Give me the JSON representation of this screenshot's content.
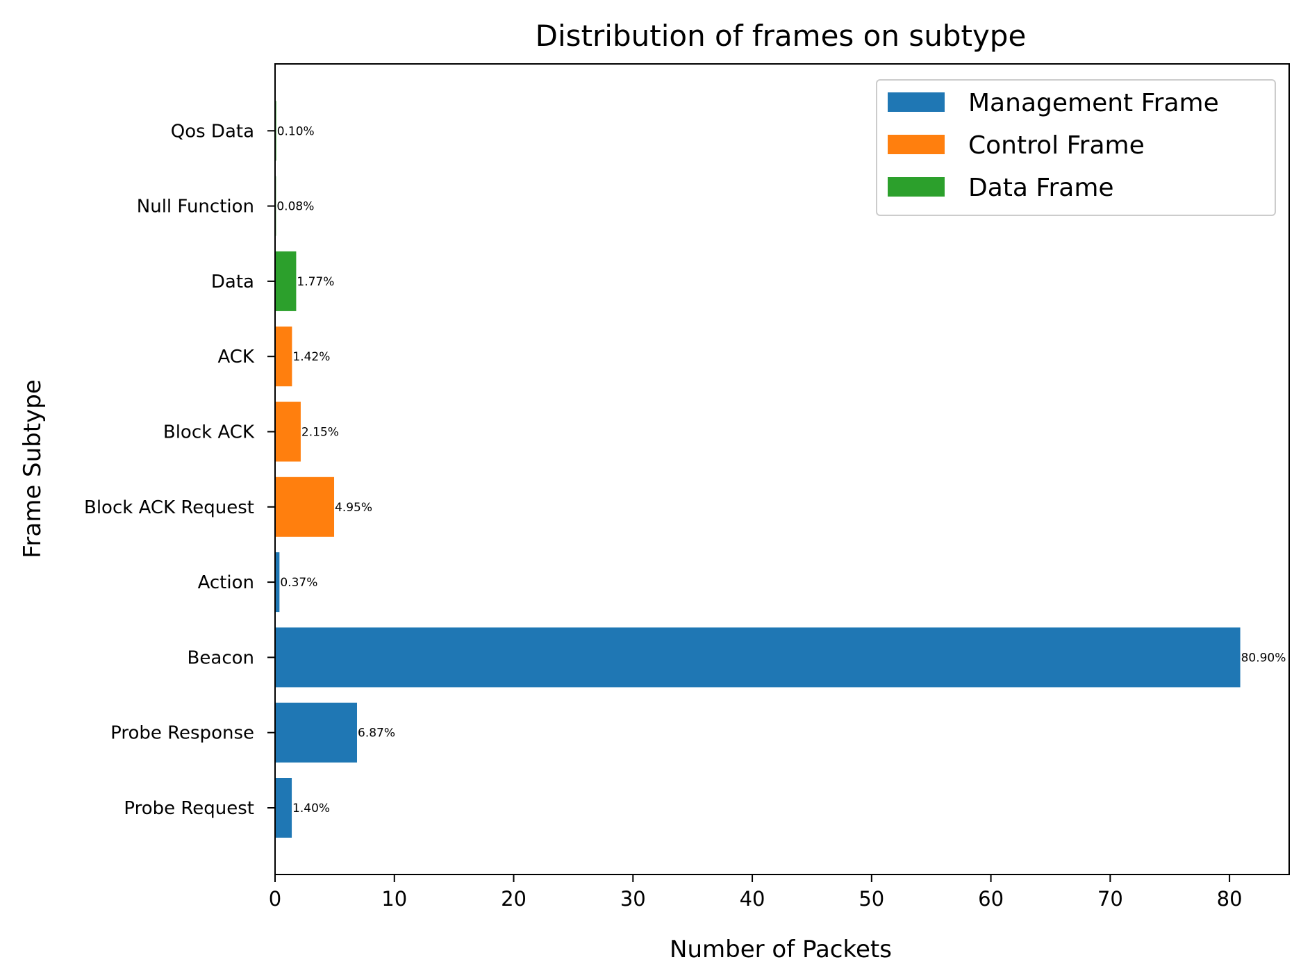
{
  "chart_data": {
    "type": "bar",
    "orientation": "horizontal",
    "title": "Distribution of frames on subtype",
    "xlabel": "Number of Packets",
    "ylabel": "Frame Subtype",
    "xlim": [
      0,
      85
    ],
    "xticks": [
      "0",
      "10",
      "20",
      "30",
      "40",
      "50",
      "60",
      "70",
      "80"
    ],
    "legend_position": "top-right",
    "grid": false,
    "groups": [
      {
        "name": "Management Frame",
        "color": "#1f77b4"
      },
      {
        "name": "Control Frame",
        "color": "#ff7f0e"
      },
      {
        "name": "Data Frame",
        "color": "#2ca02c"
      }
    ],
    "categories": [
      "Probe Request",
      "Probe Response",
      "Beacon",
      "Action",
      "Block ACK Request",
      "Block ACK",
      "ACK",
      "Data",
      "Null Function",
      "Qos Data"
    ],
    "values": [
      1.4,
      6.87,
      80.9,
      0.37,
      4.95,
      2.15,
      1.42,
      1.77,
      0.08,
      0.1
    ],
    "labels": [
      "1.40%",
      "6.87%",
      "80.90%",
      "0.37%",
      "4.95%",
      "2.15%",
      "1.42%",
      "1.77%",
      "0.08%",
      "0.10%"
    ],
    "group_index": [
      0,
      0,
      0,
      0,
      1,
      1,
      1,
      2,
      2,
      2
    ]
  }
}
